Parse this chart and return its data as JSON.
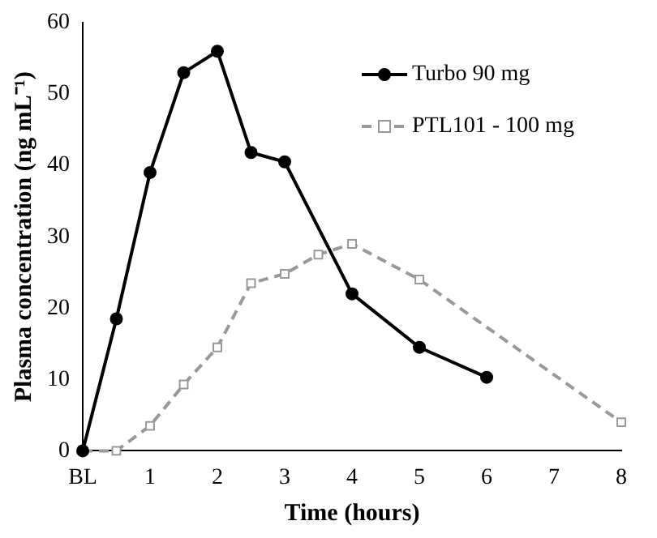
{
  "chart_data": {
    "type": "line",
    "xlabel": "Time (hours)",
    "ylabel": "Plasma concentration (ng mL⁻¹)",
    "xlim": [
      0,
      8
    ],
    "xticks": [
      {
        "value": 0,
        "label": "BL"
      },
      1,
      2,
      3,
      4,
      5,
      6,
      7,
      8
    ],
    "ylim": [
      0,
      60
    ],
    "yticks": [
      0,
      10,
      20,
      30,
      40,
      50,
      60
    ],
    "legend": "top right",
    "grid": false,
    "series": [
      {
        "name": "Turbo 90 mg",
        "color": "#000000",
        "marker": "circle",
        "line_style": "solid",
        "x": [
          0,
          0.5,
          1,
          1.5,
          2,
          2.5,
          3,
          4,
          5,
          6
        ],
        "values": [
          0,
          18.5,
          39,
          53,
          56,
          41.8,
          40.5,
          22,
          14.5,
          10.3
        ]
      },
      {
        "name": "PTL101 - 100 mg",
        "color": "#999999",
        "marker": "square",
        "line_style": "dashed",
        "x": [
          0,
          0.5,
          1,
          1.5,
          2,
          2.5,
          3,
          3.5,
          4,
          5,
          8
        ],
        "values": [
          0,
          0,
          3.5,
          9.3,
          14.5,
          23.5,
          24.8,
          27.5,
          29,
          24,
          4
        ]
      }
    ]
  }
}
